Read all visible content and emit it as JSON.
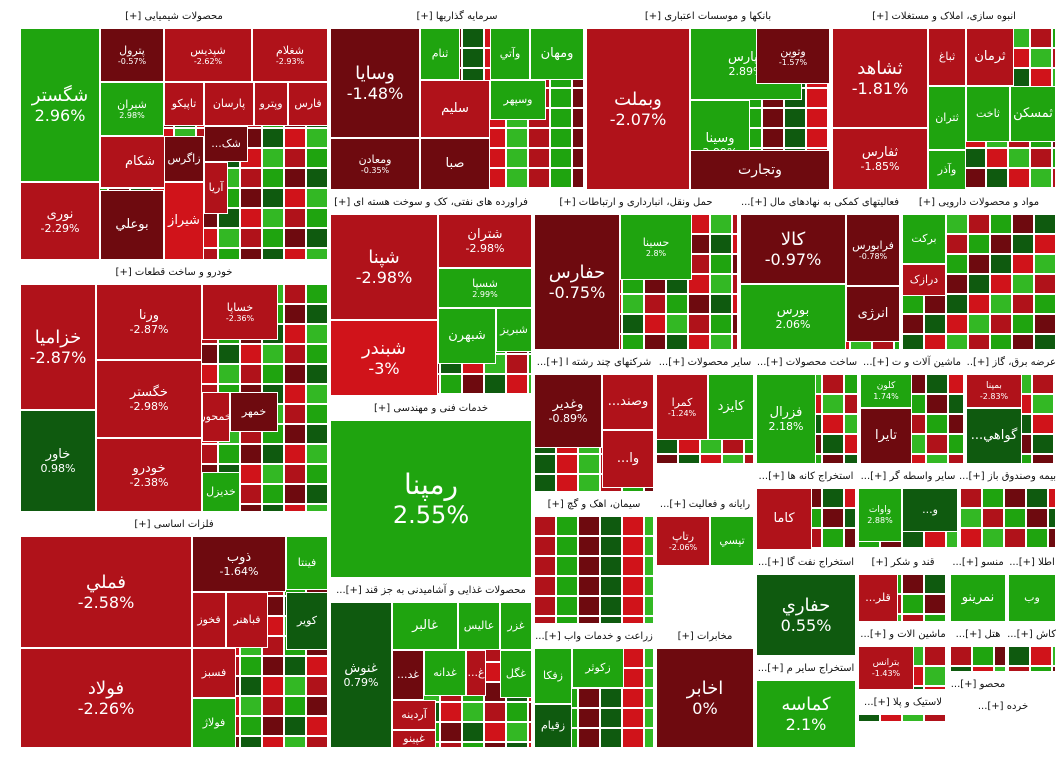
{
  "colors": {
    "strong_green": "#1fa40f",
    "dark_green": "#0f5a0f",
    "light_green": "#33b824",
    "strong_red": "#d0131a",
    "red": "#b0121a",
    "dark_red": "#6e0a0f",
    "border": "#ffffff"
  },
  "chart_data": {
    "type": "heatmap",
    "sectors": [
      {
        "name": "محصولات شیمیایی [+]",
        "tiles": [
          {
            "symbol": "شگستر",
            "change": "2.96%"
          },
          {
            "symbol": "پترول",
            "change": "-0.57%"
          },
          {
            "symbol": "شپدیس",
            "change": "-2.62%"
          },
          {
            "symbol": "شغلام",
            "change": "-2.93%"
          },
          {
            "symbol": "شیران",
            "change": "2.98%"
          },
          {
            "symbol": "تاپیکو",
            "change": ""
          },
          {
            "symbol": "پارسان",
            "change": ""
          },
          {
            "symbol": "وپترو",
            "change": ""
          },
          {
            "symbol": "فارس",
            "change": ""
          },
          {
            "symbol": "...شک",
            "change": ""
          },
          {
            "symbol": "شکام",
            "change": ""
          },
          {
            "symbol": "زاگرس",
            "change": ""
          },
          {
            "symbol": "آریا",
            "change": ""
          },
          {
            "symbol": "نوری",
            "change": "-2.29%"
          },
          {
            "symbol": "بوعلي",
            "change": ""
          },
          {
            "symbol": "شیراز",
            "change": ""
          }
        ]
      },
      {
        "name": "سرمایه گذاریها [+]",
        "tiles": [
          {
            "symbol": "وسایا",
            "change": "-1.48%"
          },
          {
            "symbol": "ثنام",
            "change": ""
          },
          {
            "symbol": "وآتي",
            "change": ""
          },
          {
            "symbol": "ومهان",
            "change": ""
          },
          {
            "symbol": "وسپهر",
            "change": ""
          },
          {
            "symbol": "سلیم",
            "change": ""
          },
          {
            "symbol": "ومعادن",
            "change": "-0.35%"
          },
          {
            "symbol": "صبا",
            "change": ""
          }
        ]
      },
      {
        "name": "بانکها و موسسات اعتباری [+]",
        "tiles": [
          {
            "symbol": "وبملت",
            "change": "-2.07%"
          },
          {
            "symbol": "وپارس",
            "change": "2.89%"
          },
          {
            "symbol": "وتوین",
            "change": "-1.57%"
          },
          {
            "symbol": "وسینا",
            "change": "2.99%"
          },
          {
            "symbol": "وتجارت",
            "change": ""
          }
        ]
      },
      {
        "name": "انبوه سازی، املاک و مستغلات [+]",
        "tiles": [
          {
            "symbol": "ثشاهد",
            "change": "-1.81%"
          },
          {
            "symbol": "ثباغ",
            "change": ""
          },
          {
            "symbol": "ثرمان",
            "change": ""
          },
          {
            "symbol": "ثتران",
            "change": ""
          },
          {
            "symbol": "ثاخت",
            "change": ""
          },
          {
            "symbol": "ثمسکن",
            "change": ""
          },
          {
            "symbol": "ثفارس",
            "change": "-1.85%"
          },
          {
            "symbol": "وآذر",
            "change": ""
          }
        ]
      },
      {
        "name": "خودرو و ساخت قطعات [+]",
        "tiles": [
          {
            "symbol": "خزامیا",
            "change": "-2.87%"
          },
          {
            "symbol": "ورنا",
            "change": "-2.87%"
          },
          {
            "symbol": "خساپا",
            "change": "-2.36%"
          },
          {
            "symbol": "خاور",
            "change": "0.98%"
          },
          {
            "symbol": "خگستر",
            "change": "-2.98%"
          },
          {
            "symbol": "خمهر",
            "change": ""
          },
          {
            "symbol": "خمحور",
            "change": ""
          },
          {
            "symbol": "خودرو",
            "change": "-2.38%"
          },
          {
            "symbol": "خدیزل",
            "change": ""
          }
        ]
      },
      {
        "name": "فلزات اساسی [+]",
        "tiles": [
          {
            "symbol": "فملي",
            "change": "-2.58%"
          },
          {
            "symbol": "ذوب",
            "change": "-1.64%"
          },
          {
            "symbol": "فینتا",
            "change": ""
          },
          {
            "symbol": "فخوز",
            "change": ""
          },
          {
            "symbol": "فباهنر",
            "change": ""
          },
          {
            "symbol": "کویر",
            "change": ""
          },
          {
            "symbol": "فولاد",
            "change": "-2.26%"
          },
          {
            "symbol": "فسبز",
            "change": ""
          },
          {
            "symbol": "فولاژ",
            "change": ""
          }
        ]
      },
      {
        "name": "فراورده های نفتی، کک و سوخت هسته ای [+]",
        "tiles": [
          {
            "symbol": "شپنا",
            "change": "-2.98%"
          },
          {
            "symbol": "شبندر",
            "change": "-3%"
          },
          {
            "symbol": "شتران",
            "change": "-2.98%"
          },
          {
            "symbol": "شسپا",
            "change": "2.99%"
          },
          {
            "symbol": "شبهرن",
            "change": ""
          },
          {
            "symbol": "شبریز",
            "change": ""
          }
        ]
      },
      {
        "name": "حمل ونقل، انبارداری و ارتباطات [+]",
        "tiles": [
          {
            "symbol": "حفارس",
            "change": "-0.75%"
          },
          {
            "symbol": "حسینا",
            "change": "2.8%"
          }
        ]
      },
      {
        "name": "فعالیتهای کمکی به نهادهای مال [+]...",
        "tiles": [
          {
            "symbol": "کالا",
            "change": "-0.97%"
          },
          {
            "symbol": "فرابورس",
            "change": "-0.78%"
          },
          {
            "symbol": "بورس",
            "change": "2.06%"
          },
          {
            "symbol": "انرژی",
            "change": ""
          }
        ]
      },
      {
        "name": "مواد و محصولات دارویی [+]",
        "tiles": [
          {
            "symbol": "برکت",
            "change": ""
          },
          {
            "symbol": "درازک",
            "change": ""
          }
        ]
      },
      {
        "name": "خدمات فنی و مهندسی [+]",
        "tiles": [
          {
            "symbol": "رمپنا",
            "change": "2.55%"
          }
        ]
      },
      {
        "name": "شرکتهای چند رشته ا [+]...",
        "tiles": [
          {
            "symbol": "وغدیر",
            "change": "-0.89%"
          },
          {
            "symbol": "...وصند",
            "change": ""
          },
          {
            "symbol": "...وا",
            "change": ""
          }
        ]
      },
      {
        "name": "سایر محصولات [+]...",
        "tiles": [
          {
            "symbol": "کایزد",
            "change": ""
          },
          {
            "symbol": "کمرا",
            "change": "-1.24%"
          }
        ]
      },
      {
        "name": "ساخت محصولات [+]...",
        "tiles": [
          {
            "symbol": "فزرال",
            "change": "2.18%"
          }
        ]
      },
      {
        "name": "ماشین آلات و ت [+]...",
        "tiles": [
          {
            "symbol": "تایرا",
            "change": ""
          },
          {
            "symbol": "کلون",
            "change": "1.74%"
          }
        ]
      },
      {
        "name": "عرضه برق، گاز [+]...",
        "tiles": [
          {
            "symbol": "...گواهي",
            "change": ""
          },
          {
            "symbol": "بمپنا",
            "change": "-2.83%"
          }
        ]
      },
      {
        "name": "سیمان، اهک و گچ [+]",
        "tiles": []
      },
      {
        "name": "رایانه و فعالیت [+]...",
        "tiles": [
          {
            "symbol": "تپسي",
            "change": ""
          },
          {
            "symbol": "رتاپ",
            "change": "-2.06%"
          }
        ]
      },
      {
        "name": "استخراج کانه ها [+]...",
        "tiles": [
          {
            "symbol": "کاما",
            "change": ""
          }
        ]
      },
      {
        "name": "سایر واسطه گر [+]...",
        "tiles": [
          {
            "symbol": "...و",
            "change": ""
          },
          {
            "symbol": "واوات",
            "change": "2.88%"
          }
        ]
      },
      {
        "name": "بیمه وصندوق باز [+]...",
        "tiles": []
      },
      {
        "name": "محصولات غذایی و آشامیدنی به جز قند [+]...",
        "tiles": [
          {
            "symbol": "غنوش",
            "change": "0.79%"
          },
          {
            "symbol": "غالبر",
            "change": ""
          },
          {
            "symbol": "عالیس",
            "change": ""
          },
          {
            "symbol": "غزر",
            "change": ""
          },
          {
            "symbol": "...غد",
            "change": ""
          },
          {
            "symbol": "غدانه",
            "change": ""
          },
          {
            "symbol": "...غ",
            "change": ""
          },
          {
            "symbol": "غگل",
            "change": ""
          },
          {
            "symbol": "آردینه",
            "change": ""
          },
          {
            "symbol": "غپینو",
            "change": ""
          }
        ]
      },
      {
        "name": "زراعت و خدمات واب [+]...",
        "tiles": [
          {
            "symbol": "زفکا",
            "change": ""
          },
          {
            "symbol": "زکوثر",
            "change": ""
          },
          {
            "symbol": "زقیام",
            "change": ""
          }
        ]
      },
      {
        "name": "مخابرات [+]",
        "tiles": [
          {
            "symbol": "اخابر",
            "change": "0%"
          }
        ]
      },
      {
        "name": "استخراج نفت گا [+]...",
        "tiles": [
          {
            "symbol": "حفاري",
            "change": "0.55%"
          }
        ]
      },
      {
        "name": "استخراج سایر م [+]...",
        "tiles": [
          {
            "symbol": "کماسه",
            "change": "2.1%"
          }
        ]
      },
      {
        "name": "قند و شکر [+]",
        "tiles": [
          {
            "symbol": "...قلر",
            "change": ""
          }
        ]
      },
      {
        "name": "منسو [+]...",
        "tiles": [
          {
            "symbol": "نمرینو",
            "change": ""
          }
        ]
      },
      {
        "name": "اطلا [+]...",
        "tiles": [
          {
            "symbol": "وب",
            "change": ""
          }
        ]
      },
      {
        "name": "ماشین الات و [+]...",
        "tiles": [
          {
            "symbol": "بترانس",
            "change": "-1.43%"
          }
        ]
      },
      {
        "name": "هتل [+]...",
        "tiles": []
      },
      {
        "name": "کاش [+]...",
        "tiles": []
      },
      {
        "name": "محصو [+]...",
        "tiles": []
      },
      {
        "name": "لاستیک و پلا [+]...",
        "tiles": []
      },
      {
        "name": "خرده [+]...",
        "tiles": []
      }
    ]
  }
}
